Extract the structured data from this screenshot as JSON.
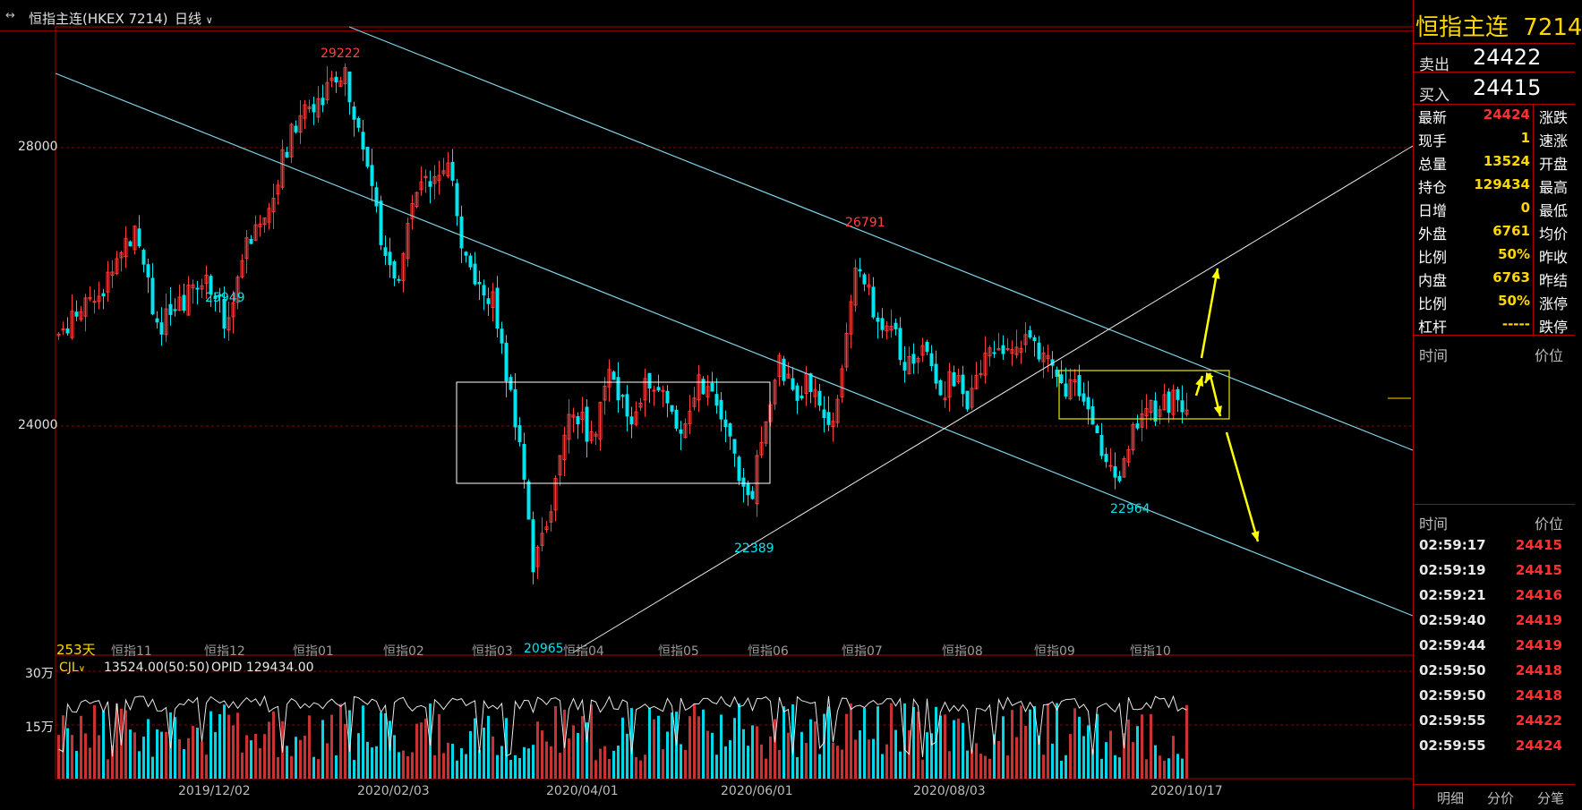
{
  "header": {
    "symbol_title": "恒指主连(HKEX 7214)",
    "period": "日线",
    "period_chevron_icon": "chevron-down-icon",
    "link_icon": "link-icon"
  },
  "main_chart": {
    "y_axis_labels": [
      "28000",
      "24000"
    ],
    "day_count_label": "253天",
    "month_markers": [
      "恒指11",
      "恒指12",
      "恒指01",
      "恒指02",
      "恒指03",
      "恒指04",
      "恒指05",
      "恒指06",
      "恒指07",
      "恒指08",
      "恒指09",
      "恒指10"
    ],
    "extreme_labels": {
      "high_29222": "29222",
      "low_25949": "25949",
      "high_26791": "26791",
      "low_20965": "20965",
      "low_22389": "22389",
      "low_22964": "22964"
    },
    "colors": {
      "up": "#ff3b3b",
      "down": "#00e5ee",
      "trendline": "#7fd4e8",
      "box_white": "#ffffff",
      "box_yellow": "#e8e800",
      "arrow": "#ffff00",
      "grid": "#8b0000"
    }
  },
  "volume_panel": {
    "indicator_name": "CJL",
    "indicator_value": "13524.00(50:50)",
    "opid_text": "OPID 129434.00",
    "y_labels": [
      "30万",
      "15万"
    ]
  },
  "x_axis_dates": [
    "2019/12/02",
    "2020/02/03",
    "2020/04/01",
    "2020/06/01",
    "2020/08/03",
    "2020/10/17"
  ],
  "quote_panel": {
    "name": "恒指主连",
    "code": "7214",
    "ask_label": "卖出",
    "ask_value": "24422",
    "bid_label": "买入",
    "bid_value": "24415",
    "rows": [
      {
        "label": "最新",
        "value": "24424",
        "color": "#ff3030",
        "label2": "涨跌"
      },
      {
        "label": "现手",
        "value": "1",
        "color": "#ffd700",
        "label2": "速涨"
      },
      {
        "label": "总量",
        "value": "13524",
        "color": "#ffd700",
        "label2": "开盘"
      },
      {
        "label": "持仓",
        "value": "129434",
        "color": "#ffd700",
        "label2": "最高"
      },
      {
        "label": "日增",
        "value": "0",
        "color": "#ffd700",
        "label2": "最低"
      },
      {
        "label": "外盘",
        "value": "6761",
        "color": "#ffd700",
        "label2": "均价"
      },
      {
        "label": "比例",
        "value": "50%",
        "color": "#ffd700",
        "label2": "昨收"
      },
      {
        "label": "内盘",
        "value": "6763",
        "color": "#ffd700",
        "label2": "昨结"
      },
      {
        "label": "比例",
        "value": "50%",
        "color": "#ffd700",
        "label2": "涨停"
      },
      {
        "label": "杠杆",
        "value": "-----",
        "color": "#ffd700",
        "label2": "跌停"
      }
    ],
    "section1_time_header": "时间",
    "section1_price_header": "价位",
    "section2_time_header": "时间",
    "section2_price_header": "价位",
    "ticks": [
      {
        "time": "02:59:17",
        "price": "24415"
      },
      {
        "time": "02:59:19",
        "price": "24415"
      },
      {
        "time": "02:59:21",
        "price": "24416"
      },
      {
        "time": "02:59:40",
        "price": "24419"
      },
      {
        "time": "02:59:44",
        "price": "24419"
      },
      {
        "time": "02:59:50",
        "price": "24418"
      },
      {
        "time": "02:59:50",
        "price": "24418"
      },
      {
        "time": "02:59:55",
        "price": "24422"
      },
      {
        "time": "02:59:55",
        "price": "24424"
      }
    ],
    "tabs": [
      "明细",
      "分价",
      "分笔"
    ]
  }
}
